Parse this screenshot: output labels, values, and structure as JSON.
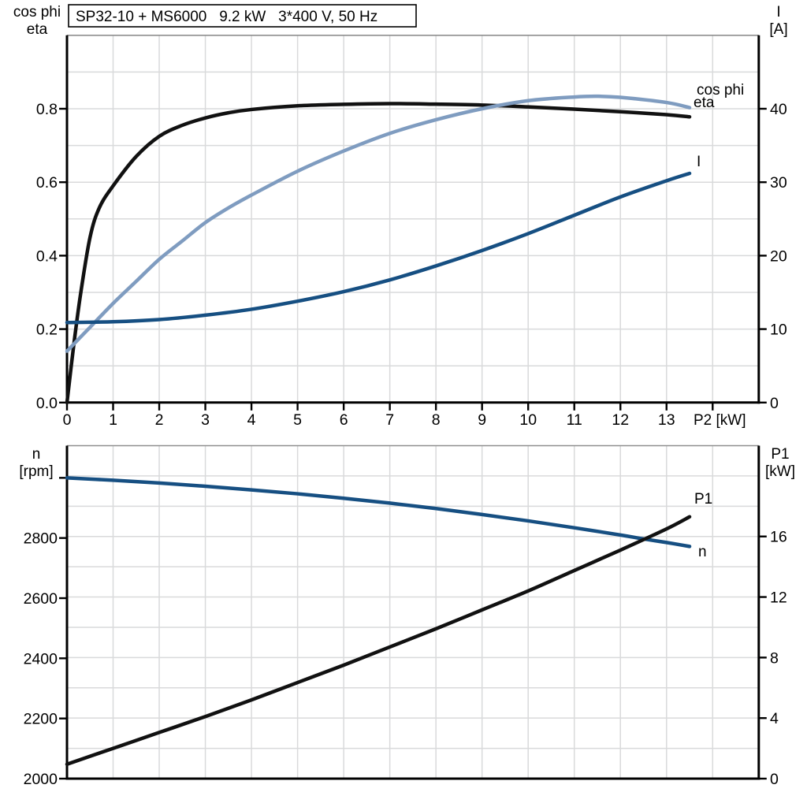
{
  "title": "SP32-10 + MS6000   9.2 kW   3*400 V, 50 Hz",
  "colors": {
    "black_curve": "#111111",
    "cos_phi_curve": "#7f9cc0",
    "dark_blue_curve": "#164f82",
    "grid": "#d9dadb",
    "axis": "#000000",
    "top_border": "#8f8f8f",
    "background": "#ffffff"
  },
  "chart_data": [
    {
      "id": "motor-electrical-curves",
      "type": "line",
      "title": "SP32-10 + MS6000   9.2 kW   3*400 V, 50 Hz",
      "grid": true,
      "x_axis": {
        "label": "P2 [kW]",
        "range": [
          0,
          15
        ],
        "tick_values": [
          0,
          1,
          2,
          3,
          4,
          5,
          6,
          7,
          8,
          9,
          10,
          11,
          12,
          13
        ],
        "tick_labels": [
          "0",
          "1",
          "2",
          "3",
          "4",
          "5",
          "6",
          "7",
          "8",
          "9",
          "10",
          "11",
          "12",
          "13"
        ],
        "extra_tick_values": [
          14
        ],
        "grid_step": 1
      },
      "left_axis": {
        "title_lines": [
          "cos phi",
          "eta"
        ],
        "range": [
          0,
          1
        ],
        "tick_values": [
          0,
          0.2,
          0.4,
          0.6,
          0.8
        ],
        "tick_labels": [
          "0.0",
          "0.2",
          "0.4",
          "0.6",
          "0.8"
        ],
        "grid_step": 0.1
      },
      "right_axis": {
        "title_lines": [
          "I",
          "[A]"
        ],
        "range": [
          0,
          50
        ],
        "tick_values": [
          0,
          10,
          20,
          30,
          40
        ],
        "tick_labels": [
          "0",
          "10",
          "20",
          "30",
          "40"
        ]
      },
      "series": [
        {
          "name": "eta",
          "label": "eta",
          "axis": "left",
          "color": "#111111",
          "points": [
            [
              0,
              0
            ],
            [
              0.15,
              0.16
            ],
            [
              0.3,
              0.3
            ],
            [
              0.5,
              0.45
            ],
            [
              0.7,
              0.53
            ],
            [
              1,
              0.59
            ],
            [
              1.5,
              0.67
            ],
            [
              2,
              0.725
            ],
            [
              2.5,
              0.755
            ],
            [
              3,
              0.775
            ],
            [
              3.5,
              0.789
            ],
            [
              4,
              0.798
            ],
            [
              5,
              0.808
            ],
            [
              6,
              0.812
            ],
            [
              7,
              0.814
            ],
            [
              8,
              0.8125
            ],
            [
              9,
              0.81
            ],
            [
              10,
              0.805
            ],
            [
              11,
              0.799
            ],
            [
              12,
              0.792
            ],
            [
              13,
              0.784
            ],
            [
              13.5,
              0.778
            ]
          ]
        },
        {
          "name": "cos phi",
          "label": "cos phi",
          "axis": "left",
          "color": "#7f9cc0",
          "points": [
            [
              0,
              0.14
            ],
            [
              0.5,
              0.205
            ],
            [
              1,
              0.27
            ],
            [
              1.5,
              0.33
            ],
            [
              2,
              0.39
            ],
            [
              2.5,
              0.44
            ],
            [
              3,
              0.49
            ],
            [
              3.5,
              0.53
            ],
            [
              4,
              0.565
            ],
            [
              5,
              0.63
            ],
            [
              6,
              0.685
            ],
            [
              7,
              0.733
            ],
            [
              8,
              0.77
            ],
            [
              9,
              0.8
            ],
            [
              10,
              0.822
            ],
            [
              11,
              0.832
            ],
            [
              11.5,
              0.834
            ],
            [
              12,
              0.831
            ],
            [
              13,
              0.817
            ],
            [
              13.5,
              0.803
            ]
          ]
        },
        {
          "name": "I",
          "label": "I",
          "axis": "right",
          "color": "#164f82",
          "points": [
            [
              0,
              10.9
            ],
            [
              1,
              11.0
            ],
            [
              2,
              11.3
            ],
            [
              3,
              11.9
            ],
            [
              4,
              12.7
            ],
            [
              5,
              13.8
            ],
            [
              6,
              15.1
            ],
            [
              7,
              16.7
            ],
            [
              8,
              18.6
            ],
            [
              9,
              20.7
            ],
            [
              10,
              23.0
            ],
            [
              11,
              25.5
            ],
            [
              12,
              28.0
            ],
            [
              13,
              30.2
            ],
            [
              13.5,
              31.2
            ]
          ]
        }
      ]
    },
    {
      "id": "speed-power-curves",
      "type": "line",
      "title": "",
      "grid": true,
      "x_axis": {
        "label": "",
        "range": [
          0,
          15
        ],
        "tick_values": [],
        "tick_labels": [],
        "extra_tick_values": [],
        "grid_step": 1
      },
      "left_axis": {
        "title_lines": [
          "n",
          "[rpm]"
        ],
        "range": [
          2000,
          3107
        ],
        "tick_values": [
          2000,
          2200,
          2400,
          2600,
          2800
        ],
        "tick_labels": [
          "2000",
          "2200",
          "2400",
          "2600",
          "2800"
        ],
        "extra_tick_values": [
          3000
        ]
      },
      "right_axis": {
        "title_lines": [
          "P1",
          "[kW]"
        ],
        "range": [
          0,
          22
        ],
        "tick_values": [
          0,
          4,
          8,
          12,
          16
        ],
        "tick_labels": [
          "0",
          "4",
          "8",
          "12",
          "16"
        ],
        "grid_step": 2
      },
      "series": [
        {
          "name": "n",
          "label": "n",
          "axis": "left",
          "color": "#164f82",
          "points": [
            [
              0,
              3000
            ],
            [
              1,
              2992
            ],
            [
              2,
              2983
            ],
            [
              3,
              2972
            ],
            [
              4,
              2960
            ],
            [
              5,
              2947
            ],
            [
              6,
              2932
            ],
            [
              7,
              2916
            ],
            [
              8,
              2898
            ],
            [
              9,
              2878
            ],
            [
              10,
              2857
            ],
            [
              11,
              2834
            ],
            [
              12,
              2810
            ],
            [
              12.5,
              2797
            ],
            [
              13,
              2785
            ],
            [
              13.5,
              2772
            ]
          ]
        },
        {
          "name": "P1",
          "label": "P1",
          "axis": "right",
          "color": "#111111",
          "points": [
            [
              0,
              0.95
            ],
            [
              1,
              2.0
            ],
            [
              2,
              3.05
            ],
            [
              3,
              4.1
            ],
            [
              4,
              5.2
            ],
            [
              5,
              6.35
            ],
            [
              6,
              7.5
            ],
            [
              7,
              8.7
            ],
            [
              8,
              9.9
            ],
            [
              9,
              11.15
            ],
            [
              10,
              12.4
            ],
            [
              11,
              13.75
            ],
            [
              12,
              15.1
            ],
            [
              13,
              16.5
            ],
            [
              13.5,
              17.3
            ]
          ]
        }
      ]
    }
  ]
}
